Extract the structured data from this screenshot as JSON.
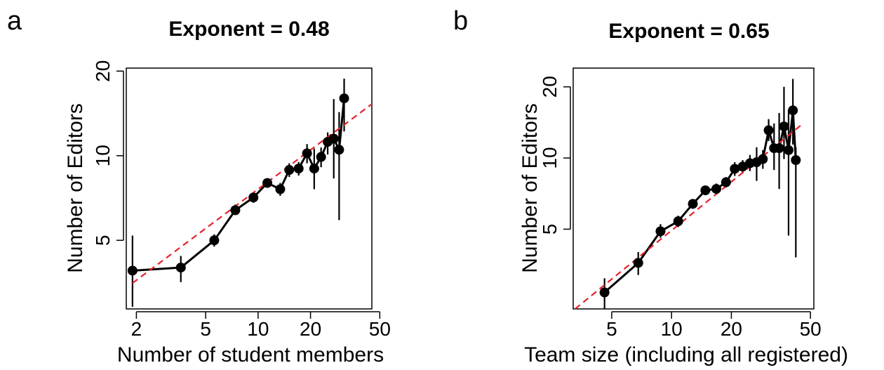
{
  "chart_data": [
    {
      "panel": "a",
      "type": "line",
      "title": "Exponent = 0.48",
      "xlabel": "Number of student members",
      "ylabel": "Number of Editors",
      "x_scale": "log",
      "y_scale": "log",
      "x_ticks": [
        2,
        5,
        10,
        20,
        50
      ],
      "y_ticks": [
        5,
        10,
        20
      ],
      "xlim": [
        1.75,
        45
      ],
      "ylim": [
        2.85,
        20.5
      ],
      "series": [
        {
          "kind": "data",
          "x": [
            1.9,
            3.6,
            5.6,
            7.4,
            9.4,
            11.3,
            13.4,
            15.1,
            17.1,
            19.1,
            21.0,
            23.0,
            25.1,
            27.2,
            29.2,
            31.2
          ],
          "y": [
            3.9,
            4.0,
            5.0,
            6.4,
            7.1,
            8.0,
            7.6,
            8.9,
            9.0,
            10.2,
            9.0,
            9.9,
            11.2,
            11.5,
            10.5,
            16.0
          ],
          "y_low": [
            2.9,
            3.55,
            4.75,
            6.15,
            6.8,
            7.7,
            7.2,
            8.4,
            8.5,
            9.4,
            7.6,
            9.1,
            10.1,
            8.3,
            5.9,
            12.2
          ],
          "y_high": [
            5.2,
            4.4,
            5.25,
            6.7,
            7.4,
            8.3,
            8.0,
            9.4,
            9.5,
            11.0,
            10.6,
            10.7,
            12.1,
            15.9,
            14.3,
            18.8
          ]
        },
        {
          "kind": "fit",
          "x": [
            1.9,
            45
          ],
          "y": [
            3.52,
            15.27
          ]
        }
      ]
    },
    {
      "panel": "b",
      "type": "line",
      "title": "Exponent = 0.65",
      "xlabel": "Team size (including all registered)",
      "ylabel": "Number of Editors",
      "x_scale": "log",
      "y_scale": "log",
      "x_ticks": [
        5,
        10,
        20,
        50
      ],
      "y_ticks": [
        5,
        10,
        20
      ],
      "xlim": [
        3.2,
        52
      ],
      "ylim": [
        2.3,
        24
      ],
      "series": [
        {
          "kind": "data",
          "x": [
            4.6,
            6.8,
            8.8,
            10.8,
            12.8,
            14.8,
            16.8,
            18.8,
            20.8,
            22.8,
            24.8,
            26.8,
            28.8,
            30.8,
            32.8,
            34.8,
            36.8,
            38.8,
            40.8,
            42.2
          ],
          "y": [
            2.7,
            3.6,
            4.9,
            5.4,
            6.4,
            7.3,
            7.4,
            7.9,
            9.0,
            9.2,
            9.5,
            9.6,
            9.9,
            13.1,
            11.0,
            11.0,
            13.6,
            10.8,
            15.9,
            9.8
          ],
          "y_low": [
            2.3,
            3.2,
            4.6,
            5.1,
            6.1,
            7.0,
            7.0,
            7.5,
            8.4,
            8.6,
            8.8,
            8.0,
            9.0,
            11.8,
            8.9,
            7.4,
            9.9,
            4.7,
            11.4,
            3.8
          ],
          "y_high": [
            3.1,
            4.0,
            5.25,
            5.7,
            6.7,
            7.6,
            7.8,
            8.3,
            9.6,
            9.8,
            10.3,
            11.1,
            10.8,
            14.6,
            14.0,
            15.5,
            20.0,
            16.0,
            21.6,
            11.1
          ]
        },
        {
          "kind": "fit",
          "x": [
            3.27,
            45
          ],
          "y": [
            2.3,
            13.8
          ]
        }
      ]
    }
  ]
}
